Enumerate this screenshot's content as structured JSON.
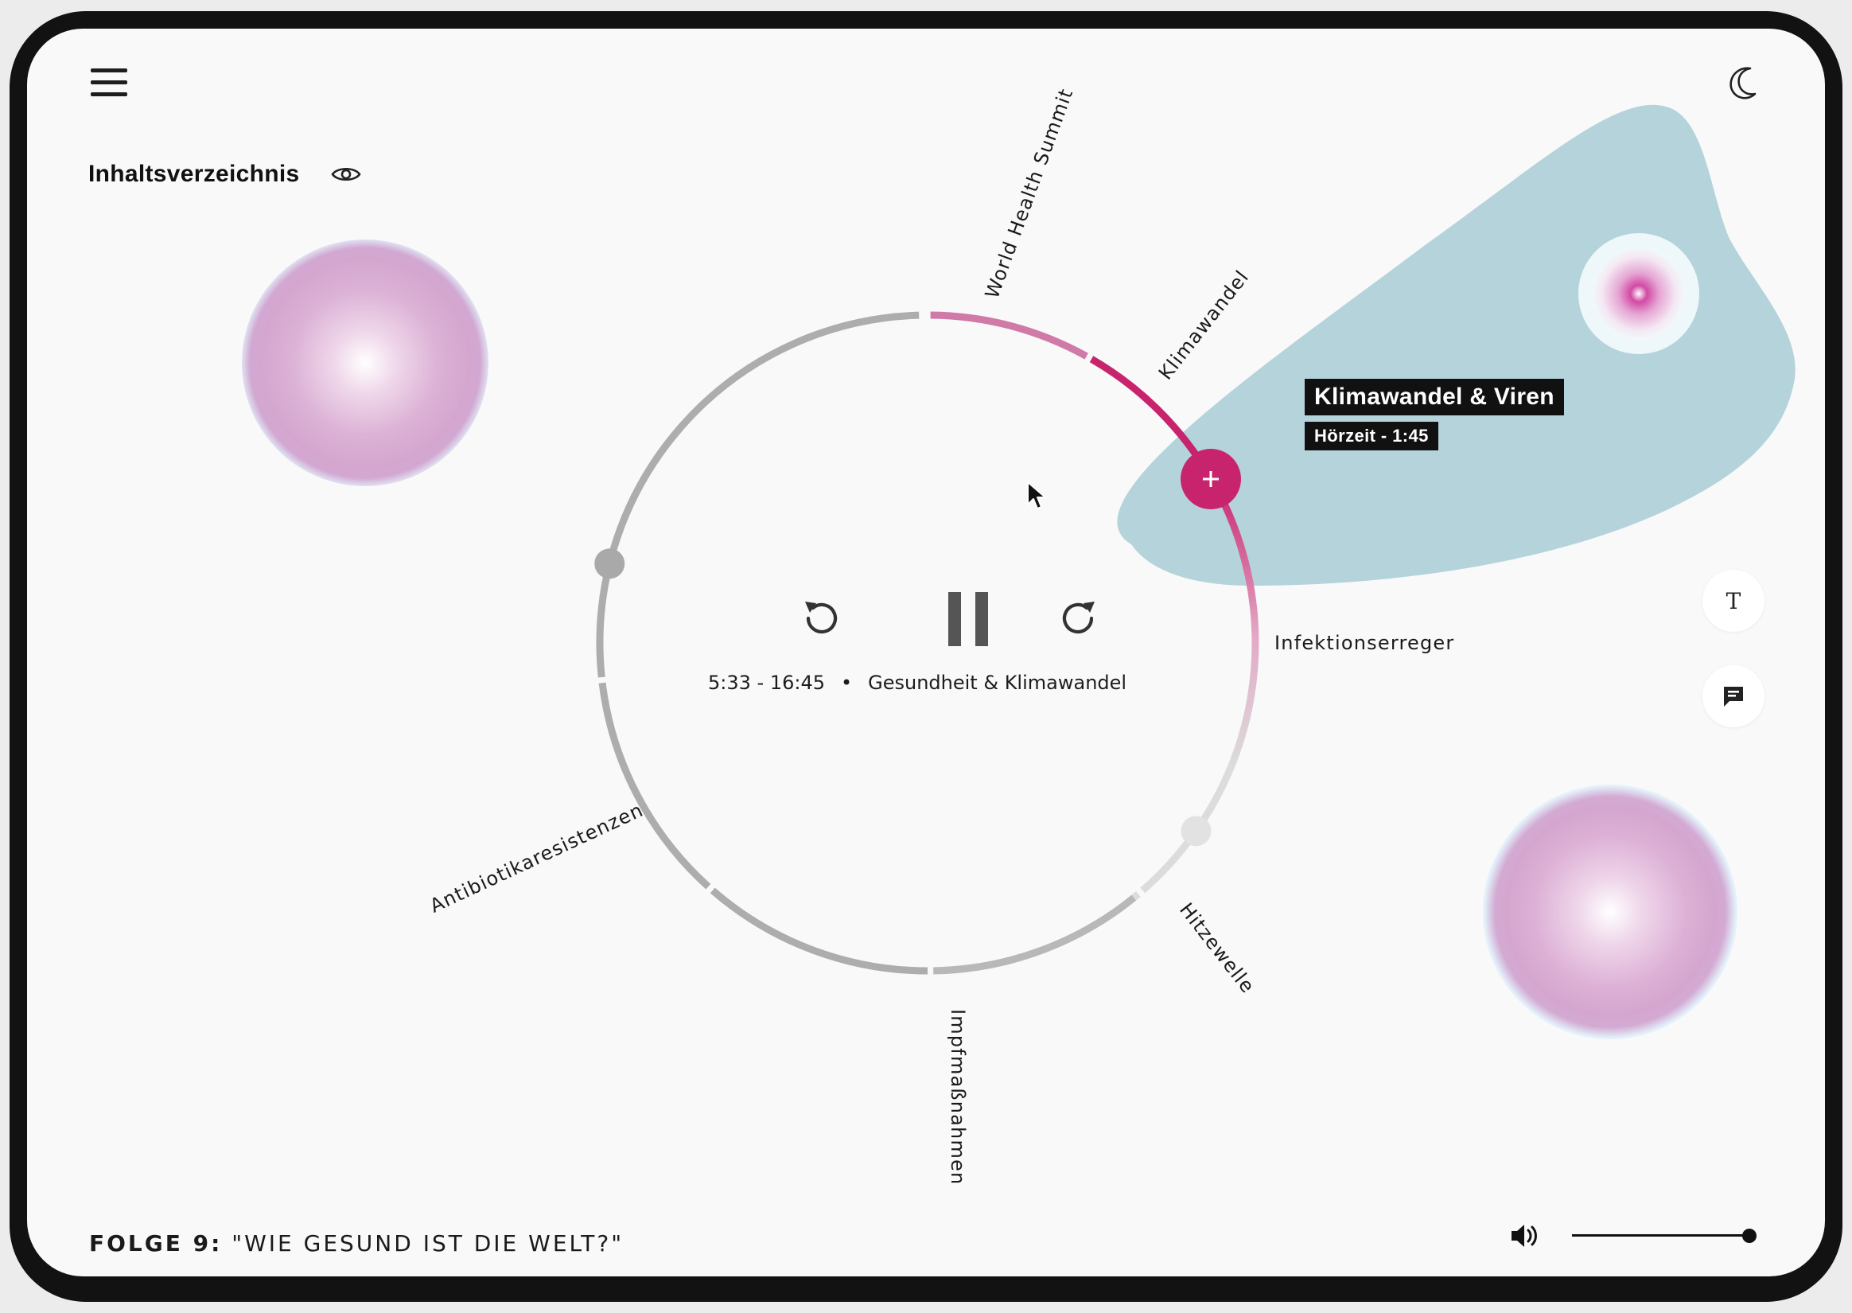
{
  "header": {
    "menu_icon": "hamburger-menu-icon",
    "theme_icon": "moon-icon"
  },
  "toc": {
    "title": "Inhaltsverzeichnis",
    "visibility_icon": "eye-icon"
  },
  "chapters": [
    {
      "label": "World Health Summit"
    },
    {
      "label": "Klimawandel"
    },
    {
      "label": "Infektionserreger"
    },
    {
      "label": "Hitzewelle"
    },
    {
      "label": "Impfmaßnahmen"
    },
    {
      "label": "Antibiotikaresistenzen"
    }
  ],
  "tooltip": {
    "title": "Klimawandel & Viren",
    "subtitle": "Hörzeit - 1:45"
  },
  "player": {
    "rewind_icon": "rewind-icon",
    "pause_icon": "pause-icon",
    "forward_icon": "forward-icon",
    "time": "5:33 - 16:45",
    "separator": "•",
    "chapter": "Gesundheit & Klimawandel",
    "add_icon": "plus-icon"
  },
  "side_tools": {
    "text_label": "T",
    "chat_icon": "chat-bubble-icon"
  },
  "episode": {
    "prefix": "FOLGE 9:",
    "title": "\"WIE GESUND IST DIE WELT?\""
  },
  "volume": {
    "icon": "speaker-icon",
    "level": 1.0
  },
  "colors": {
    "accent": "#c8246e",
    "accent_light": "#d07aa8",
    "ring_gray": "#adadad",
    "ring_light": "#dcdcdc",
    "blob": "#b5d3db"
  }
}
